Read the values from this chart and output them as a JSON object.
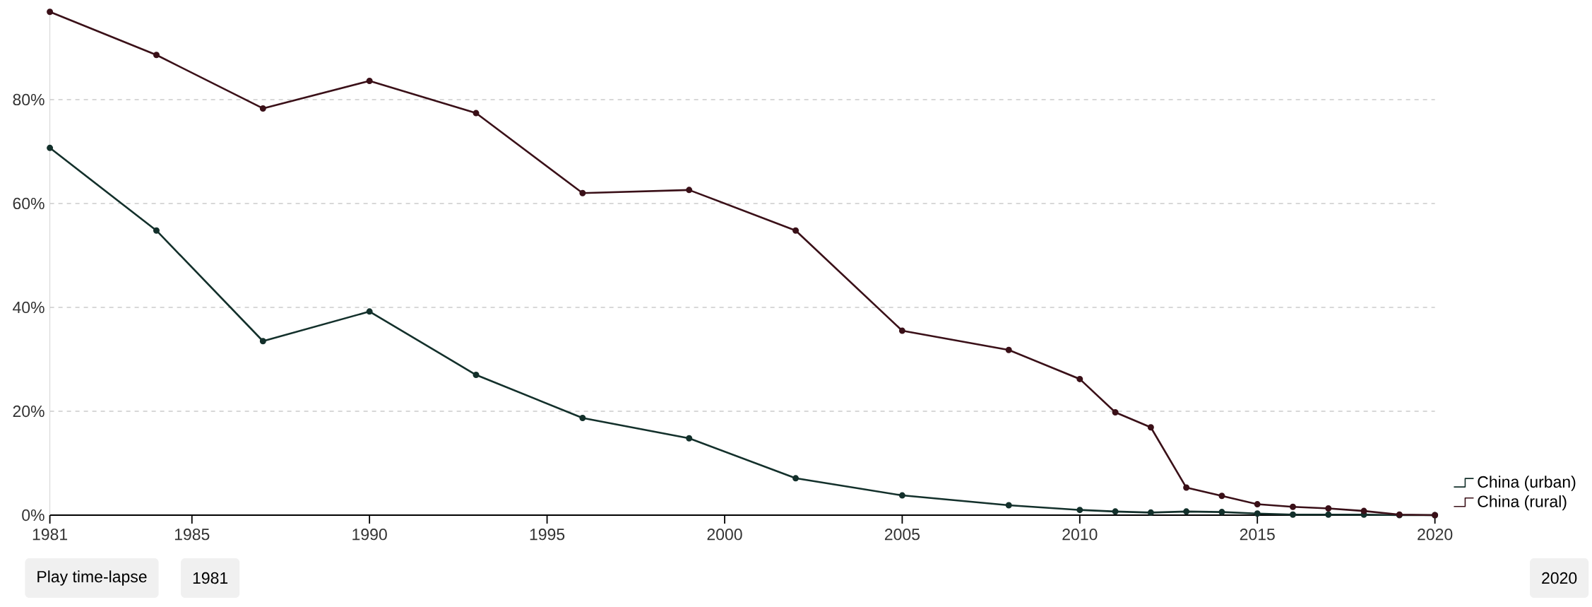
{
  "chart_data": {
    "type": "line",
    "x": [
      1981,
      1984,
      1987,
      1990,
      1993,
      1996,
      1999,
      2002,
      2005,
      2008,
      2010,
      2011,
      2012,
      2013,
      2014,
      2015,
      2016,
      2017,
      2018,
      2019,
      2020
    ],
    "series": [
      {
        "name": "China (urban)",
        "color": "#13302b",
        "values": [
          70.7,
          54.8,
          33.5,
          39.2,
          27.0,
          18.7,
          14.8,
          7.1,
          3.8,
          1.9,
          1.0,
          0.7,
          0.5,
          0.7,
          0.6,
          0.3,
          0.1,
          0.1,
          0.1,
          0,
          0
        ]
      },
      {
        "name": "China (rural)",
        "color": "#3a1018",
        "values": [
          96.9,
          88.6,
          78.3,
          83.6,
          77.4,
          62.0,
          62.6,
          54.8,
          35.5,
          31.8,
          26.2,
          19.8,
          16.9,
          5.3,
          3.7,
          2.1,
          1.6,
          1.3,
          0.8,
          0.1,
          0
        ]
      }
    ],
    "xlim": [
      1981,
      2020
    ],
    "ylim": [
      0,
      97
    ],
    "xticks": [
      1981,
      1985,
      1990,
      1995,
      2000,
      2005,
      2010,
      2015,
      2020
    ],
    "yticks": [
      {
        "value": 0,
        "label": "0%"
      },
      {
        "value": 20,
        "label": "20%"
      },
      {
        "value": 40,
        "label": "40%"
      },
      {
        "value": 60,
        "label": "60%"
      },
      {
        "value": 80,
        "label": "80%"
      }
    ],
    "grid": "y",
    "legend": "right",
    "marker": "circle",
    "line_style": "solid",
    "annotations": [
      "Play time-lapse",
      "1981",
      "2020"
    ]
  }
}
